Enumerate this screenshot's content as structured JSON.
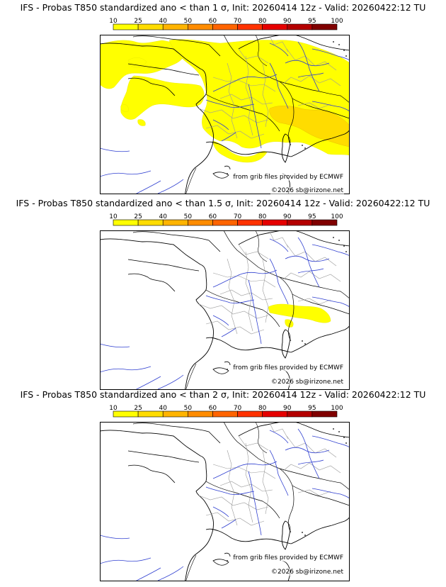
{
  "colorbar": {
    "ticks": [
      "10",
      "25",
      "40",
      "50",
      "60",
      "70",
      "80",
      "90",
      "95",
      "100"
    ],
    "colors": [
      "#ffff00",
      "#ffdc00",
      "#ffb400",
      "#ff8c00",
      "#ff6400",
      "#ff3200",
      "#e60000",
      "#b40000",
      "#800000"
    ]
  },
  "panels": [
    {
      "title": "IFS - Probas T850  standardized ano < than 1 σ, Init: 20260414 12z - Valid: 20260422:12 TU",
      "credit_source": "from grib files provided by ECMWF",
      "credit_copyright": "©2026 sb@irizone.net",
      "probability_field": "widespread yellow (10-25%) over northern and central France, Benelux, Germany, Switzerland and the Alps; orange (25-40%) over the western Alps and northern Italy",
      "max_class": "25-40"
    },
    {
      "title": "IFS - Probas T850  standardized ano < than 1.5 σ, Init: 20260414 12z - Valid: 20260422:12 TU",
      "credit_source": "from grib files provided by ECMWF",
      "credit_copyright": "©2026 sb@irizone.net",
      "probability_field": "small yellow (10-25%) area over the southwestern Alps",
      "max_class": "10-25"
    },
    {
      "title": "IFS - Probas T850  standardized ano < than 2 σ, Init: 20260414 12z - Valid: 20260422:12 TU",
      "credit_source": "from grib files provided by ECMWF",
      "credit_copyright": "©2026 sb@irizone.net",
      "probability_field": "none",
      "max_class": "none"
    }
  ]
}
